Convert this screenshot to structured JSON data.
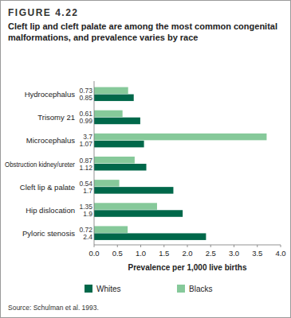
{
  "chart_data": {
    "type": "bar",
    "orientation": "horizontal",
    "title": "FIGURE 4.22",
    "subtitle": "Cleft lip and cleft palate are among the most common congenital malformations, and prevalence varies by race",
    "x_label": "Prevalence per 1,000 live births",
    "source": "Source: Schulman et al. 1993.",
    "categories": [
      "Hydrocephalus",
      "Trisomy 21",
      "Microcephalus",
      "Obstruction kidney/ureter",
      "Cleft lip & palate",
      "Hip dislocation",
      "Pyloric stenosis"
    ],
    "series": [
      {
        "name": "Whites",
        "color": "#00684a",
        "values": [
          0.85,
          0.99,
          1.07,
          1.12,
          1.7,
          1.9,
          2.4
        ]
      },
      {
        "name": "Blacks",
        "color": "#86c99a",
        "values": [
          0.73,
          0.61,
          3.7,
          0.87,
          0.54,
          1.35,
          0.72
        ]
      }
    ],
    "xlim": [
      0,
      4
    ],
    "xticks": [
      {
        "value": 0,
        "label": "0.0"
      },
      {
        "value": 0.5,
        "label": "0.5"
      },
      {
        "value": 1,
        "label": "1.0"
      },
      {
        "value": 1.5,
        "label": "1.5"
      },
      {
        "value": 2,
        "label": "2.0"
      },
      {
        "value": 2.5,
        "label": "2.5"
      },
      {
        "value": 3,
        "label": "3.0"
      },
      {
        "value": 3.5,
        "label": "3.5"
      },
      {
        "value": 4,
        "label": "4.0"
      }
    ],
    "data_labels": true,
    "grid": false,
    "legend": "bottom"
  }
}
